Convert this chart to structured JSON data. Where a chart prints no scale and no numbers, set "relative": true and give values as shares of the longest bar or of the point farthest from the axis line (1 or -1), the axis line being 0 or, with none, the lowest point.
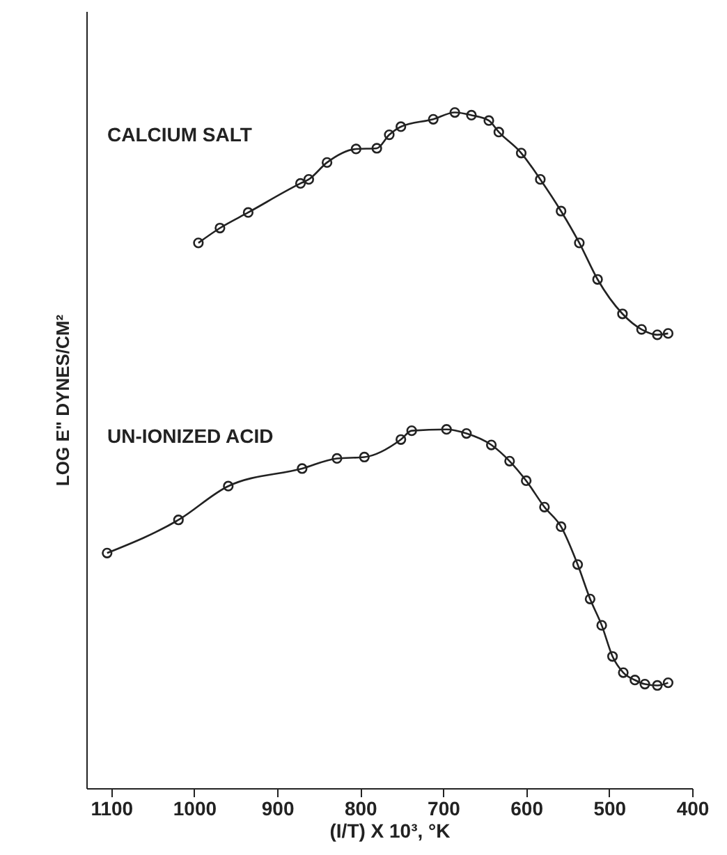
{
  "chart_data": {
    "type": "line",
    "relative": true,
    "xlabel": "(I/T) X 10³, °K",
    "ylabel": "LOG E\" DYNES/CM²",
    "xlim": [
      1130,
      400
    ],
    "xticks": [
      1100,
      1000,
      900,
      800,
      700,
      600,
      500,
      400
    ],
    "marker": "circle",
    "line_style": "solid",
    "grid": false,
    "series": [
      {
        "name": "CALCIUM SALT",
        "color": "#222222",
        "x": [
          995,
          969,
          935,
          872,
          862,
          840,
          805,
          780,
          765,
          751,
          712,
          686,
          666,
          645,
          633,
          606,
          583,
          558,
          536,
          514,
          484,
          461,
          442,
          429
        ],
        "values": [
          0.807,
          0.829,
          0.852,
          0.895,
          0.901,
          0.926,
          0.946,
          0.947,
          0.967,
          0.979,
          0.99,
          1,
          0.996,
          0.988,
          0.971,
          0.94,
          0.901,
          0.854,
          0.807,
          0.753,
          0.702,
          0.679,
          0.671,
          0.673
        ]
      },
      {
        "name": "UN-IONIZED ACID",
        "color": "#222222",
        "x": [
          1105,
          1019,
          959,
          870,
          828,
          795,
          751,
          738,
          696,
          672,
          642,
          620,
          600,
          578,
          558,
          538,
          523,
          509,
          496,
          483,
          469,
          457,
          442,
          429
        ],
        "values": [
          0.348,
          0.397,
          0.447,
          0.473,
          0.488,
          0.49,
          0.516,
          0.529,
          0.531,
          0.525,
          0.508,
          0.484,
          0.455,
          0.416,
          0.387,
          0.331,
          0.28,
          0.241,
          0.195,
          0.171,
          0.16,
          0.154,
          0.152,
          0.156
        ]
      }
    ]
  }
}
